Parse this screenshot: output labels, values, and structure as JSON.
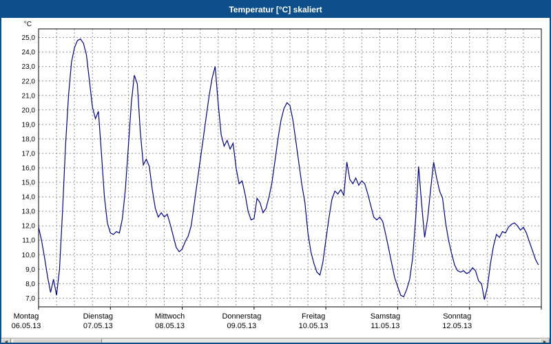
{
  "window": {
    "title": "Temperatur [°C] skaliert"
  },
  "scrollbar": {
    "left_arrow": "◄",
    "right_arrow": "►"
  },
  "chart_data": {
    "type": "line",
    "title": "Temperatur [°C] skaliert",
    "unit_label": "°C",
    "ylim": [
      6.4,
      25.6
    ],
    "yticks": [
      7,
      8,
      9,
      10,
      11,
      12,
      13,
      14,
      15,
      16,
      17,
      18,
      19,
      20,
      21,
      22,
      23,
      24,
      25
    ],
    "ytick_labels": [
      "7,0",
      "8,0",
      "9,0",
      "10,0",
      "11,0",
      "12,0",
      "13,0",
      "14,0",
      "15,0",
      "16,0",
      "17,0",
      "18,0",
      "19,0",
      "20,0",
      "21,0",
      "22,0",
      "23,0",
      "24,0",
      "25,0"
    ],
    "grid": "dashed",
    "grid_color": "#909090",
    "grid_vertical_every_hours": 6,
    "line_color": "#00008b",
    "days": [
      {
        "name": "Montag",
        "date": "06.05.13"
      },
      {
        "name": "Dienstag",
        "date": "07.05.13"
      },
      {
        "name": "Mittwoch",
        "date": "08.05.13"
      },
      {
        "name": "Donnerstag",
        "date": "09.05.13"
      },
      {
        "name": "Freitag",
        "date": "10.05.13"
      },
      {
        "name": "Samstag",
        "date": "11.05.13"
      },
      {
        "name": "Sonntag",
        "date": "12.05.13"
      }
    ],
    "series": [
      {
        "name": "Temperatur",
        "unit": "°C",
        "values_by_day": [
          [
            11.9,
            11.0,
            9.8,
            8.5,
            7.4,
            8.3,
            7.2,
            9.0,
            13.0,
            17.5,
            21.0,
            23.3,
            24.3,
            24.8,
            24.9,
            24.6,
            23.8,
            22.0,
            20.2,
            19.4,
            19.9,
            17.0,
            14.0,
            12.2
          ],
          [
            11.5,
            11.4,
            11.6,
            11.5,
            12.5,
            14.5,
            17.5,
            20.5,
            22.4,
            21.8,
            18.5,
            16.2,
            16.6,
            16.1,
            14.5,
            13.2,
            12.6,
            12.9,
            12.6,
            12.8,
            12.1,
            11.3,
            10.5,
            10.2
          ],
          [
            10.4,
            10.9,
            11.3,
            12.0,
            13.5,
            15.0,
            16.5,
            18.0,
            19.5,
            21.0,
            22.2,
            23.0,
            20.5,
            18.3,
            17.5,
            17.9,
            17.3,
            17.7,
            16.0,
            14.9,
            15.1,
            14.2,
            13.0,
            12.4
          ],
          [
            12.5,
            13.9,
            13.6,
            12.9,
            13.2,
            14.0,
            15.0,
            16.5,
            18.0,
            19.3,
            20.1,
            20.5,
            20.3,
            19.3,
            17.8,
            16.3,
            14.8,
            13.6,
            11.5,
            10.2,
            9.4,
            8.8,
            8.6,
            9.5
          ],
          [
            11.0,
            12.5,
            13.8,
            14.4,
            14.2,
            14.5,
            14.1,
            16.4,
            15.2,
            14.9,
            15.3,
            14.8,
            15.1,
            14.9,
            14.2,
            13.4,
            12.6,
            12.4,
            12.6,
            12.3,
            11.4,
            10.4,
            9.4,
            8.4
          ],
          [
            7.8,
            7.2,
            7.1,
            7.6,
            8.3,
            9.8,
            12.5,
            16.1,
            13.5,
            11.2,
            12.5,
            14.5,
            16.4,
            15.3,
            14.4,
            13.9,
            12.2,
            11.0,
            10.1,
            9.3,
            8.9,
            8.8,
            8.9,
            8.7
          ],
          [
            8.8,
            9.1,
            8.9,
            8.2,
            8.0,
            6.9,
            7.8,
            9.4,
            10.6,
            11.4,
            11.2,
            11.6,
            11.5,
            11.9,
            12.1,
            12.2,
            12.0,
            11.7,
            11.9,
            11.5,
            10.9,
            10.3,
            9.7,
            9.3
          ]
        ]
      }
    ]
  }
}
